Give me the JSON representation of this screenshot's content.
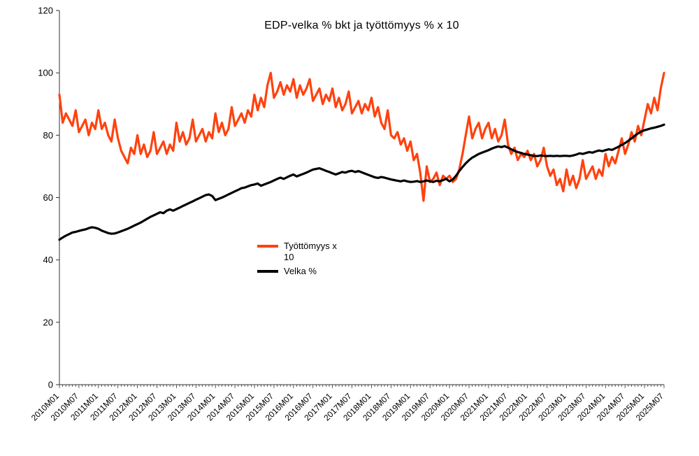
{
  "chart_data": {
    "type": "line",
    "title": "EDP-velka % bkt ja työttömyys % x 10",
    "xlabel": "",
    "ylabel": "",
    "ylim": [
      0,
      120
    ],
    "yticks": [
      0,
      20,
      40,
      60,
      80,
      100,
      120
    ],
    "grid": false,
    "legend_position": "inside-center",
    "x_unit": "month",
    "x_tick_labels": [
      "2010M01",
      "2010M07",
      "2011M01",
      "2011M07",
      "2012M01",
      "2012M07",
      "2013M01",
      "2013M07",
      "2014M01",
      "2014M07",
      "2015M01",
      "2015M07",
      "2016M01",
      "2016M07",
      "2017M01",
      "2017M07",
      "2018M01",
      "2018M07",
      "2019M01",
      "2019M07",
      "2020M01",
      "2020M07",
      "2021M01",
      "2021M07",
      "2022M01",
      "2022M07",
      "2023M01",
      "2023M07",
      "2024M01",
      "2024M07",
      "2025M01",
      "2025M07"
    ],
    "series": [
      {
        "id": "tyottomyys",
        "name": "Työttömyys x 10",
        "color": "#ff420e",
        "values": [
          93,
          84,
          87,
          85,
          83,
          88,
          81,
          83,
          85,
          80,
          84,
          82,
          88,
          82,
          84,
          80,
          78,
          85,
          79,
          75,
          73,
          71,
          76,
          74,
          80,
          74,
          77,
          73,
          75,
          81,
          74,
          76,
          78,
          74,
          77,
          75,
          84,
          78,
          81,
          77,
          79,
          85,
          78,
          80,
          82,
          78,
          81,
          79,
          87,
          81,
          84,
          80,
          82,
          89,
          83,
          85,
          87,
          84,
          88,
          86,
          93,
          88,
          92,
          89,
          96,
          100,
          92,
          94,
          97,
          93,
          96,
          94,
          98,
          92,
          96,
          93,
          95,
          98,
          91,
          93,
          95,
          90,
          93,
          91,
          95,
          89,
          92,
          88,
          90,
          94,
          87,
          89,
          91,
          87,
          90,
          88,
          92,
          86,
          89,
          84,
          82,
          88,
          80,
          79,
          81,
          77,
          79,
          75,
          78,
          72,
          74,
          68,
          59,
          70,
          65,
          66,
          68,
          64,
          67,
          66,
          67,
          65,
          66,
          69,
          74,
          80,
          86,
          79,
          82,
          84,
          79,
          82,
          84,
          79,
          82,
          78,
          80,
          85,
          77,
          74,
          76,
          72,
          74,
          73,
          75,
          72,
          74,
          70,
          72,
          76,
          70,
          67,
          69,
          64,
          66,
          62,
          69,
          64,
          67,
          63,
          66,
          72,
          66,
          68,
          70,
          66,
          69,
          67,
          74,
          70,
          73,
          71,
          75,
          79,
          74,
          77,
          81,
          78,
          83,
          80,
          85,
          90,
          87,
          92,
          88,
          95,
          100
        ]
      },
      {
        "id": "velka",
        "name": "Velka %",
        "color": "#000000",
        "values": [
          46.5,
          47.2,
          47.8,
          48.3,
          48.8,
          49.0,
          49.3,
          49.6,
          49.8,
          50.2,
          50.5,
          50.3,
          50.0,
          49.4,
          49.0,
          48.6,
          48.4,
          48.5,
          48.8,
          49.2,
          49.6,
          50.0,
          50.5,
          51.0,
          51.5,
          52.0,
          52.6,
          53.2,
          53.8,
          54.3,
          54.8,
          55.3,
          55.0,
          55.8,
          56.2,
          55.8,
          56.3,
          56.8,
          57.3,
          57.8,
          58.3,
          58.8,
          59.3,
          59.8,
          60.3,
          60.8,
          61.0,
          60.5,
          59.2,
          59.6,
          60.0,
          60.5,
          61.0,
          61.5,
          62.0,
          62.5,
          63.0,
          63.2,
          63.6,
          64.0,
          64.2,
          64.5,
          63.8,
          64.2,
          64.6,
          65.0,
          65.5,
          66.0,
          66.4,
          66.0,
          66.5,
          67.0,
          67.4,
          66.8,
          67.2,
          67.6,
          68.0,
          68.5,
          69.0,
          69.2,
          69.4,
          69.0,
          68.6,
          68.2,
          67.8,
          67.4,
          67.8,
          68.2,
          68.0,
          68.4,
          68.6,
          68.2,
          68.5,
          68.1,
          67.7,
          67.3,
          66.9,
          66.5,
          66.3,
          66.6,
          66.4,
          66.1,
          65.8,
          65.6,
          65.4,
          65.2,
          65.5,
          65.2,
          65.0,
          65.1,
          65.3,
          65.0,
          65.2,
          65.5,
          65.2,
          65.0,
          65.4,
          65.2,
          65.6,
          66.0,
          65.2,
          65.8,
          67.0,
          68.5,
          69.8,
          71.0,
          72.0,
          72.8,
          73.4,
          74.0,
          74.4,
          74.8,
          75.2,
          75.7,
          76.1,
          76.4,
          76.2,
          76.5,
          76.0,
          75.5,
          75.0,
          74.6,
          74.3,
          74.0,
          73.8,
          73.6,
          73.4,
          73.3,
          73.5,
          73.4,
          73.3,
          73.4,
          73.3,
          73.4,
          73.3,
          73.4,
          73.4,
          73.3,
          73.5,
          73.8,
          74.2,
          74.0,
          74.3,
          74.6,
          74.4,
          74.8,
          75.1,
          74.9,
          75.2,
          75.5,
          75.3,
          75.8,
          76.3,
          76.9,
          77.5,
          78.2,
          79.0,
          79.8,
          80.6,
          81.2,
          81.6,
          81.9,
          82.2,
          82.4,
          82.7,
          83.0,
          83.4
        ]
      }
    ]
  }
}
